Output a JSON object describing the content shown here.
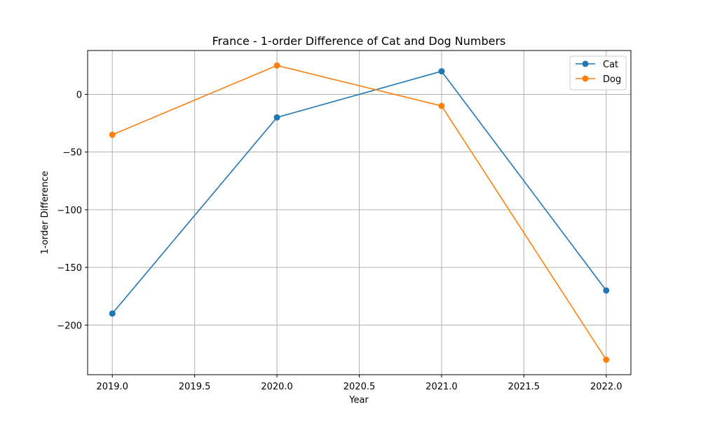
{
  "chart_data": {
    "type": "line",
    "title": "France - 1-order Difference of Cat and Dog Numbers",
    "xlabel": "Year",
    "ylabel": "1-order Difference",
    "xlim": [
      2018.85,
      2022.15
    ],
    "ylim": [
      -243,
      38
    ],
    "xticks": [
      2019.0,
      2019.5,
      2020.0,
      2020.5,
      2021.0,
      2021.5,
      2022.0
    ],
    "xtick_labels": [
      "2019.0",
      "2019.5",
      "2020.0",
      "2020.5",
      "2021.0",
      "2021.5",
      "2022.0"
    ],
    "yticks": [
      0,
      -50,
      -100,
      -150,
      -200
    ],
    "ytick_labels": [
      "0",
      "−50",
      "−100",
      "−150",
      "−200"
    ],
    "grid": true,
    "legend_position": "top-right",
    "x": [
      2019,
      2020,
      2021,
      2022
    ],
    "series": [
      {
        "name": "Cat",
        "color": "#1f77b4",
        "marker": "circle",
        "values": [
          -190,
          -20,
          20,
          -170
        ]
      },
      {
        "name": "Dog",
        "color": "#ff7f0e",
        "marker": "circle",
        "values": [
          -35,
          25,
          -10,
          -230
        ]
      }
    ]
  }
}
